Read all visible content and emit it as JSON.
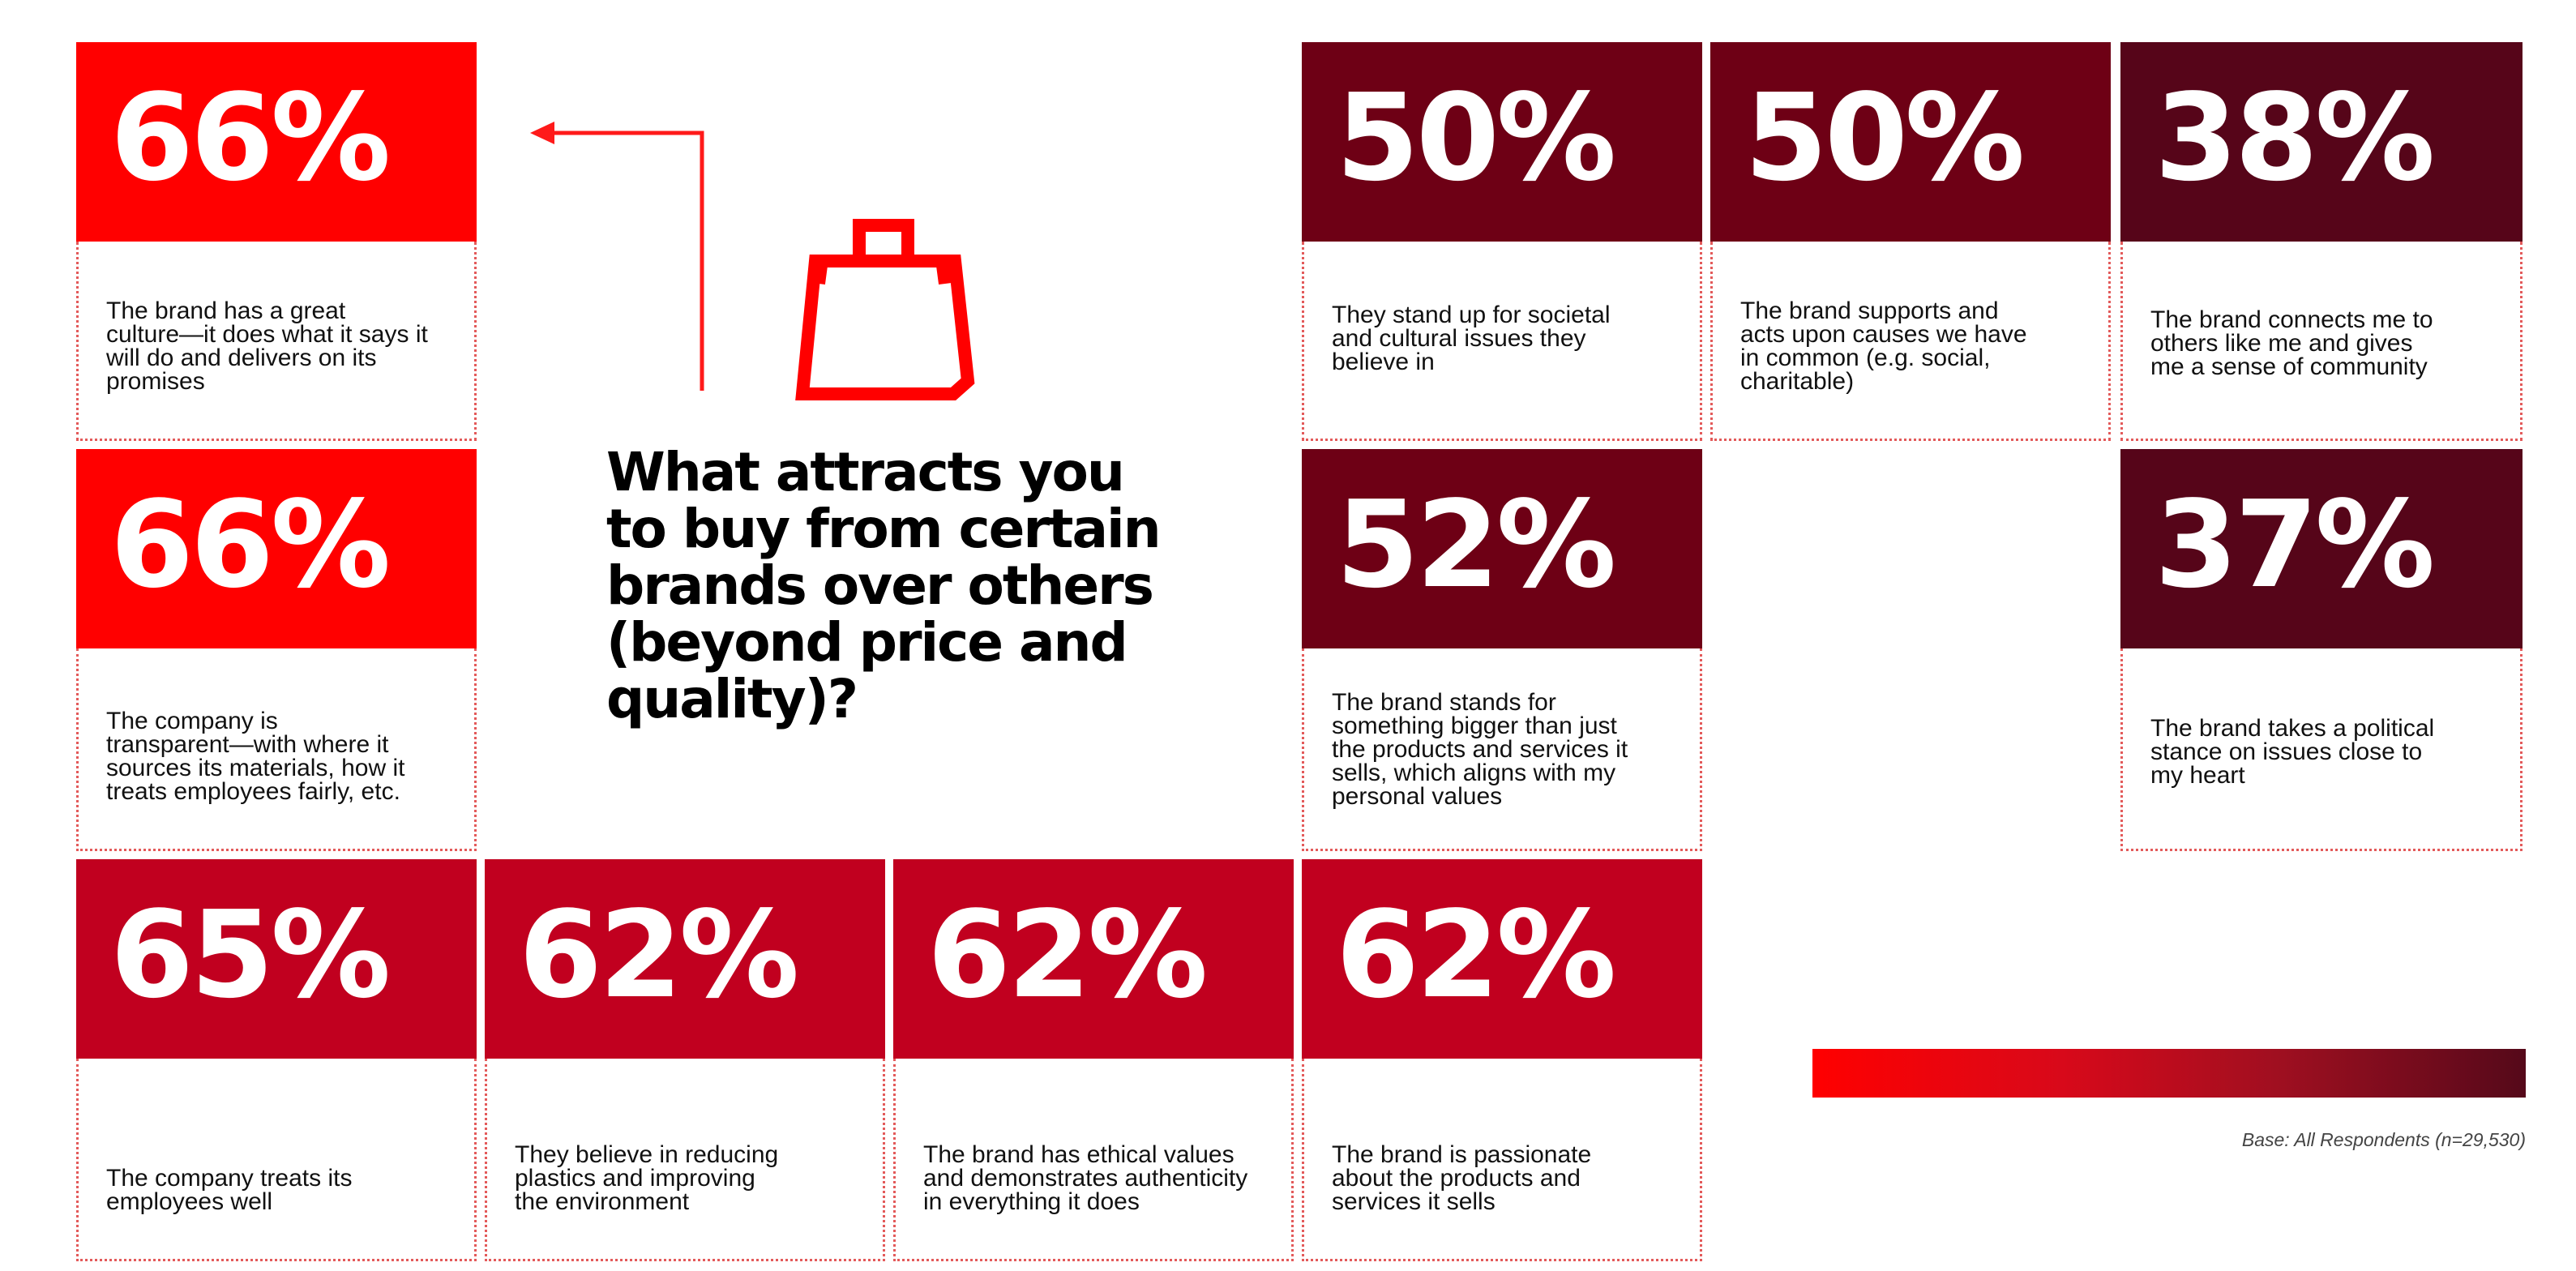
{
  "chart_data": {
    "type": "table",
    "title": "What attracts you to buy from certain brands over others (beyond price and quality)?",
    "base_note": "Base: All Respondents (n=29,530)",
    "colors": {
      "bright_red": "#ff0000",
      "crimson": "#c1001f",
      "dark_red": "#6e0015",
      "maroon": "#560519"
    },
    "items": [
      {
        "id": "culture",
        "value": "66%",
        "label": "The brand has a great\nculture—it does what it says it\nwill do and delivers on its\npromises",
        "color": "#ff0000"
      },
      {
        "id": "transparent",
        "value": "66%",
        "label": "The company is\ntransparent—with where it\nsources its materials, how it\ntreats employees fairly, etc.",
        "color": "#ff0000"
      },
      {
        "id": "employees",
        "value": "65%",
        "label": "The company treats its\nemployees well",
        "color": "#c1001f"
      },
      {
        "id": "plastics",
        "value": "62%",
        "label": "They believe in reducing\nplastics and improving\nthe environment",
        "color": "#c1001f"
      },
      {
        "id": "ethical",
        "value": "62%",
        "label": "The brand has ethical values\nand demonstrates authenticity\nin everything it does",
        "color": "#c1001f"
      },
      {
        "id": "passionate",
        "value": "62%",
        "label": "The brand is passionate\nabout the products and\nservices it sells",
        "color": "#c1001f"
      },
      {
        "id": "bigger",
        "value": "52%",
        "label": "The brand stands for\nsomething bigger than just\nthe products and services it\nsells, which aligns with my\npersonal values",
        "color": "#6e0015"
      },
      {
        "id": "societal",
        "value": "50%",
        "label": "They stand up for societal\nand cultural issues they\nbelieve in",
        "color": "#6e0015"
      },
      {
        "id": "causes",
        "value": "50%",
        "label": "The brand supports and\nacts upon causes we have\nin common (e.g. social,\ncharitable)",
        "color": "#6e0015"
      },
      {
        "id": "community",
        "value": "38%",
        "label": "The brand connects me to\nothers like me and gives\nme a sense of community",
        "color": "#560519"
      },
      {
        "id": "political",
        "value": "37%",
        "label": "The brand takes a political\nstance on issues close to\nmy heart",
        "color": "#560519"
      }
    ]
  }
}
